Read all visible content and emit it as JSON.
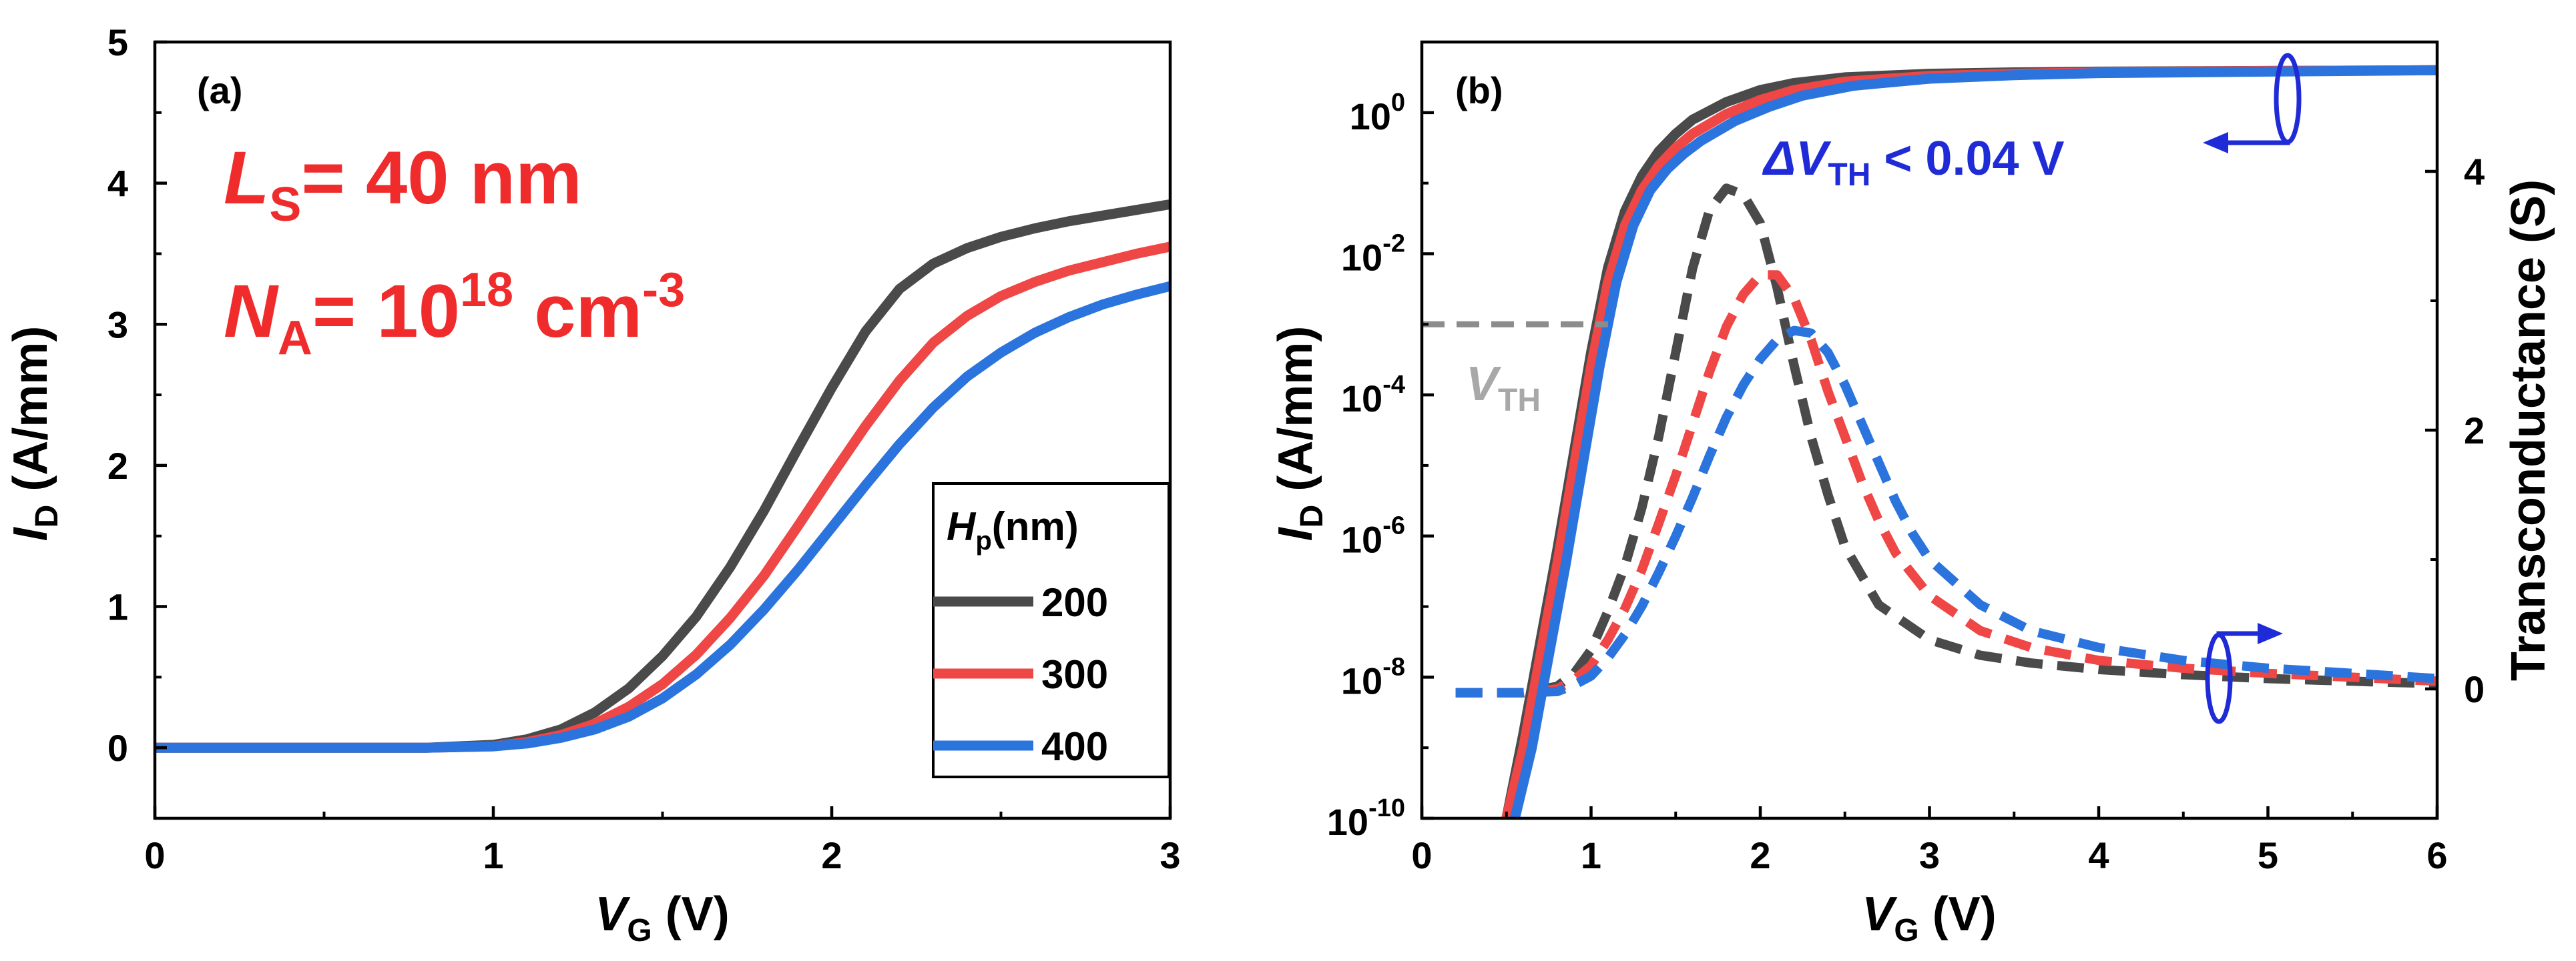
{
  "chart_data": [
    {
      "panel": "(a)",
      "type": "line",
      "xlabel": "V",
      "xlabel_sub": "G",
      "xlabel_unit": " (V)",
      "ylabel": "I",
      "ylabel_sub": "D",
      "ylabel_unit": " (A/mm)",
      "xlim": [
        0,
        3
      ],
      "ylim": [
        -0.5,
        5
      ],
      "xticks": [
        0,
        1,
        2,
        3
      ],
      "yticks": [
        0,
        1,
        2,
        3,
        4,
        5
      ],
      "annotations": {
        "ls_var": "L",
        "ls_sub": "S",
        "ls_rest": "= 40 nm",
        "na_var": "N",
        "na_sub": "A",
        "na_rest": "= 10",
        "na_exp": "18",
        "na_unit": " cm",
        "na_unit_exp": "-3"
      },
      "legend": {
        "title_var": "H",
        "title_sub": "p",
        "title_unit": "(nm)",
        "placement": "bottom-right"
      },
      "series": [
        {
          "name": "200",
          "color": "#4a4a4a",
          "x": [
            0,
            0.8,
            1.0,
            1.1,
            1.2,
            1.3,
            1.4,
            1.5,
            1.6,
            1.7,
            1.8,
            1.9,
            2.0,
            2.1,
            2.2,
            2.3,
            2.4,
            2.5,
            2.6,
            2.7,
            2.8,
            2.9,
            3.0
          ],
          "y": [
            0,
            0,
            0.02,
            0.06,
            0.13,
            0.25,
            0.42,
            0.65,
            0.93,
            1.28,
            1.68,
            2.12,
            2.55,
            2.95,
            3.25,
            3.43,
            3.54,
            3.62,
            3.68,
            3.73,
            3.77,
            3.81,
            3.85
          ]
        },
        {
          "name": "300",
          "color": "#ef4646",
          "x": [
            0,
            0.8,
            1.0,
            1.1,
            1.2,
            1.3,
            1.4,
            1.5,
            1.6,
            1.7,
            1.8,
            1.9,
            2.0,
            2.1,
            2.2,
            2.3,
            2.4,
            2.5,
            2.6,
            2.7,
            2.8,
            2.9,
            3.0
          ],
          "y": [
            0,
            0,
            0.01,
            0.04,
            0.09,
            0.17,
            0.29,
            0.45,
            0.66,
            0.92,
            1.22,
            1.57,
            1.93,
            2.28,
            2.6,
            2.87,
            3.06,
            3.2,
            3.3,
            3.38,
            3.44,
            3.5,
            3.55
          ]
        },
        {
          "name": "400",
          "color": "#2b74dd",
          "x": [
            0,
            0.8,
            1.0,
            1.1,
            1.2,
            1.3,
            1.4,
            1.5,
            1.6,
            1.7,
            1.8,
            1.9,
            2.0,
            2.1,
            2.2,
            2.3,
            2.4,
            2.5,
            2.6,
            2.7,
            2.8,
            2.9,
            3.0
          ],
          "y": [
            0,
            0,
            0.01,
            0.03,
            0.07,
            0.13,
            0.22,
            0.35,
            0.52,
            0.73,
            0.98,
            1.26,
            1.56,
            1.86,
            2.15,
            2.41,
            2.63,
            2.8,
            2.94,
            3.05,
            3.14,
            3.21,
            3.27
          ]
        }
      ]
    },
    {
      "panel": "(b)",
      "type": "line",
      "xlabel": "V",
      "xlabel_sub": "G",
      "xlabel_unit": " (V)",
      "ylabel": "I",
      "ylabel_sub": "D",
      "ylabel_unit": " (A/mm)",
      "ylabel_right": "Transconductance (S)",
      "xlim": [
        0,
        6
      ],
      "ylim_log10": [
        -10,
        1
      ],
      "ylim_right": [
        -1,
        5
      ],
      "xticks": [
        0,
        1,
        2,
        3,
        4,
        5,
        6
      ],
      "yticks_log": [
        {
          "exp": 0,
          "base": "10",
          "sup": "0"
        },
        {
          "exp": -2,
          "base": "10",
          "sup": "-2"
        },
        {
          "exp": -4,
          "base": "10",
          "sup": "-4"
        },
        {
          "exp": -6,
          "base": "10",
          "sup": "-6"
        },
        {
          "exp": -8,
          "base": "10",
          "sup": "-8"
        },
        {
          "exp": -10,
          "base": "10",
          "sup": "-10"
        }
      ],
      "yticks_right": [
        0,
        2,
        4
      ],
      "annotations": {
        "vth_var": "V",
        "vth_sub": "TH",
        "vth_level_log10": -3,
        "vth_x_range": [
          0,
          1.1
        ],
        "delta_prefix": "ΔV",
        "delta_sub": "TH",
        "delta_rest": " < 0.04 V"
      },
      "id_series": [
        {
          "name": "200",
          "color": "#4a4a4a",
          "x": [
            0.5,
            0.6,
            0.7,
            0.8,
            0.9,
            1.0,
            1.1,
            1.2,
            1.3,
            1.4,
            1.5,
            1.6,
            1.8,
            2.0,
            2.2,
            2.5,
            3.0,
            3.5,
            4.0,
            5.0,
            6.0
          ],
          "log10_y": [
            -10,
            -8.8,
            -7.5,
            -6.2,
            -4.8,
            -3.4,
            -2.2,
            -1.4,
            -0.9,
            -0.55,
            -0.3,
            -0.1,
            0.15,
            0.32,
            0.42,
            0.5,
            0.55,
            0.57,
            0.58,
            0.59,
            0.6
          ]
        },
        {
          "name": "300",
          "color": "#ef4646",
          "x": [
            0.5,
            0.6,
            0.7,
            0.8,
            0.9,
            1.0,
            1.1,
            1.2,
            1.3,
            1.4,
            1.5,
            1.6,
            1.8,
            2.0,
            2.2,
            2.5,
            3.0,
            3.5,
            4.0,
            5.0,
            6.0
          ],
          "log10_y": [
            -10.2,
            -9.0,
            -7.7,
            -6.4,
            -5.0,
            -3.6,
            -2.4,
            -1.6,
            -1.1,
            -0.75,
            -0.5,
            -0.3,
            -0.02,
            0.18,
            0.32,
            0.44,
            0.52,
            0.55,
            0.57,
            0.59,
            0.6
          ]
        },
        {
          "name": "400",
          "color": "#2b74dd",
          "x": [
            0.55,
            0.65,
            0.75,
            0.85,
            0.95,
            1.05,
            1.15,
            1.25,
            1.35,
            1.45,
            1.55,
            1.65,
            1.85,
            2.05,
            2.25,
            2.55,
            3.0,
            3.5,
            4.0,
            5.0,
            6.0
          ],
          "log10_y": [
            -10.2,
            -9.0,
            -7.7,
            -6.4,
            -5.0,
            -3.6,
            -2.4,
            -1.6,
            -1.1,
            -0.8,
            -0.58,
            -0.4,
            -0.12,
            0.08,
            0.24,
            0.38,
            0.48,
            0.53,
            0.56,
            0.58,
            0.6
          ]
        }
      ],
      "gm_series": [
        {
          "name": "200",
          "color": "#4a4a4a",
          "x": [
            0.2,
            0.6,
            0.8,
            0.9,
            1.0,
            1.1,
            1.2,
            1.3,
            1.4,
            1.5,
            1.6,
            1.7,
            1.8,
            1.9,
            2.0,
            2.1,
            2.2,
            2.3,
            2.4,
            2.5,
            2.7,
            3.0,
            3.3,
            3.6,
            4.0,
            4.5,
            5.0,
            5.5,
            6.0
          ],
          "y": [
            -0.03,
            -0.03,
            0.02,
            0.12,
            0.3,
            0.6,
            0.95,
            1.4,
            1.95,
            2.6,
            3.25,
            3.7,
            3.87,
            3.82,
            3.6,
            3.1,
            2.5,
            1.95,
            1.5,
            1.1,
            0.65,
            0.38,
            0.26,
            0.2,
            0.15,
            0.11,
            0.08,
            0.06,
            0.04
          ]
        },
        {
          "name": "300",
          "color": "#ef4646",
          "x": [
            0.2,
            0.6,
            0.8,
            0.9,
            1.0,
            1.1,
            1.2,
            1.3,
            1.4,
            1.5,
            1.6,
            1.7,
            1.8,
            1.9,
            2.0,
            2.1,
            2.2,
            2.3,
            2.4,
            2.5,
            2.6,
            2.7,
            2.8,
            3.0,
            3.3,
            3.6,
            4.0,
            4.5,
            5.0,
            5.5,
            6.0
          ],
          "y": [
            -0.03,
            -0.03,
            0.0,
            0.07,
            0.18,
            0.38,
            0.62,
            0.92,
            1.28,
            1.65,
            2.05,
            2.45,
            2.8,
            3.05,
            3.2,
            3.2,
            3.02,
            2.7,
            2.3,
            1.95,
            1.6,
            1.3,
            1.05,
            0.72,
            0.45,
            0.32,
            0.22,
            0.16,
            0.12,
            0.09,
            0.06
          ]
        },
        {
          "name": "400",
          "color": "#2b74dd",
          "x": [
            0.2,
            0.6,
            0.8,
            0.9,
            1.0,
            1.1,
            1.2,
            1.3,
            1.4,
            1.5,
            1.6,
            1.7,
            1.8,
            1.9,
            2.0,
            2.1,
            2.2,
            2.3,
            2.4,
            2.5,
            2.6,
            2.7,
            2.8,
            2.9,
            3.0,
            3.3,
            3.6,
            4.0,
            4.5,
            5.0,
            5.5,
            6.0
          ],
          "y": [
            -0.03,
            -0.03,
            -0.02,
            0.03,
            0.1,
            0.24,
            0.42,
            0.64,
            0.9,
            1.18,
            1.48,
            1.8,
            2.1,
            2.35,
            2.55,
            2.7,
            2.77,
            2.75,
            2.6,
            2.35,
            2.05,
            1.75,
            1.45,
            1.2,
            1.0,
            0.65,
            0.45,
            0.32,
            0.22,
            0.16,
            0.12,
            0.08
          ]
        }
      ]
    }
  ]
}
